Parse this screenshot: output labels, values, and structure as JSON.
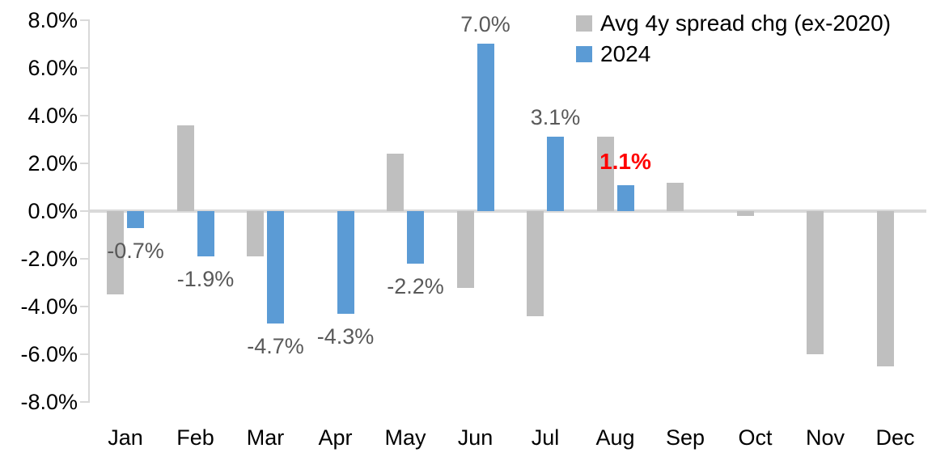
{
  "chart_data": {
    "type": "bar",
    "title": "",
    "xlabel": "",
    "ylabel": "",
    "categories": [
      "Jan",
      "Feb",
      "Mar",
      "Apr",
      "May",
      "Jun",
      "Jul",
      "Aug",
      "Sep",
      "Oct",
      "Nov",
      "Dec"
    ],
    "series": [
      {
        "name": "Avg 4y spread chg (ex-2020)",
        "color": "#bfbfbf",
        "values": [
          -3.5,
          3.6,
          -1.9,
          0.0,
          2.4,
          -3.2,
          -4.4,
          3.1,
          1.2,
          -0.2,
          -6.0,
          -6.5
        ]
      },
      {
        "name": "2024",
        "color": "#5b9bd5",
        "values": [
          -0.7,
          -1.9,
          -4.7,
          -4.3,
          -2.2,
          7.0,
          3.1,
          1.1,
          null,
          null,
          null,
          null
        ]
      }
    ],
    "data_labels": [
      {
        "category": "Jan",
        "text": "-0.7%",
        "color": "#595959",
        "bold": false
      },
      {
        "category": "Feb",
        "text": "-1.9%",
        "color": "#595959",
        "bold": false
      },
      {
        "category": "Mar",
        "text": "-4.7%",
        "color": "#595959",
        "bold": false
      },
      {
        "category": "Apr",
        "text": "-4.3%",
        "color": "#595959",
        "bold": false
      },
      {
        "category": "May",
        "text": "-2.2%",
        "color": "#595959",
        "bold": false
      },
      {
        "category": "Jun",
        "text": "7.0%",
        "color": "#595959",
        "bold": false
      },
      {
        "category": "Jul",
        "text": "3.1%",
        "color": "#595959",
        "bold": false
      },
      {
        "category": "Aug",
        "text": "1.1%",
        "color": "#ff0000",
        "bold": true
      }
    ],
    "y_ticks": [
      "8.0%",
      "6.0%",
      "4.0%",
      "2.0%",
      "0.0%",
      "-2.0%",
      "-4.0%",
      "-6.0%",
      "-8.0%"
    ],
    "ylim": [
      -8,
      8
    ],
    "grid": "zero-line-only",
    "legend_position": "top-right",
    "colors": {
      "axis": "#d9d9d9",
      "axis_text": "#000000",
      "data_label_default": "#595959",
      "data_label_highlight": "#ff0000",
      "series_avg": "#bfbfbf",
      "series_2024": "#5b9bd5"
    }
  }
}
